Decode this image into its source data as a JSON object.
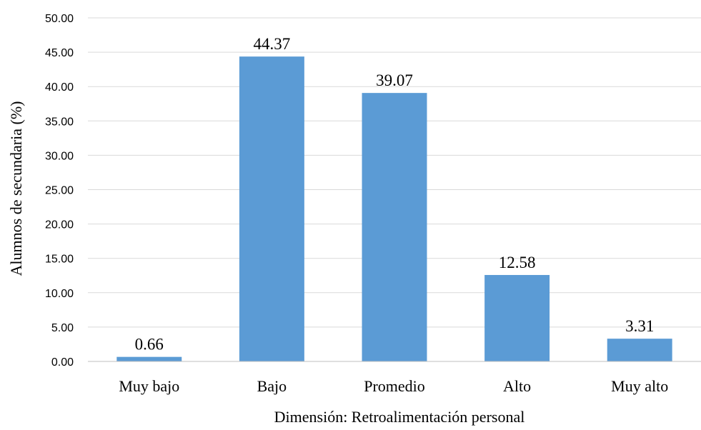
{
  "chart_data": {
    "type": "bar",
    "categories": [
      "Muy bajo",
      "Bajo",
      "Promedio",
      "Alto",
      "Muy alto"
    ],
    "values": [
      0.66,
      44.37,
      39.07,
      12.58,
      3.31
    ],
    "data_labels": [
      "0.66",
      "44.37",
      "39.07",
      "12.58",
      "3.31"
    ],
    "xlabel": "Dimensión: Retroalimentación personal",
    "ylabel": "Alumnos de secundaria  (%)",
    "ylim": [
      0,
      50
    ],
    "y_ticks": [
      "0.00",
      "5.00",
      "10.00",
      "15.00",
      "20.00",
      "25.00",
      "30.00",
      "35.00",
      "40.00",
      "45.00",
      "50.00"
    ],
    "grid": true,
    "legend": "none",
    "colors": {
      "bar": "#5B9BD5",
      "grid": "#D9D9D9",
      "axis": "#BFBFBF"
    }
  }
}
